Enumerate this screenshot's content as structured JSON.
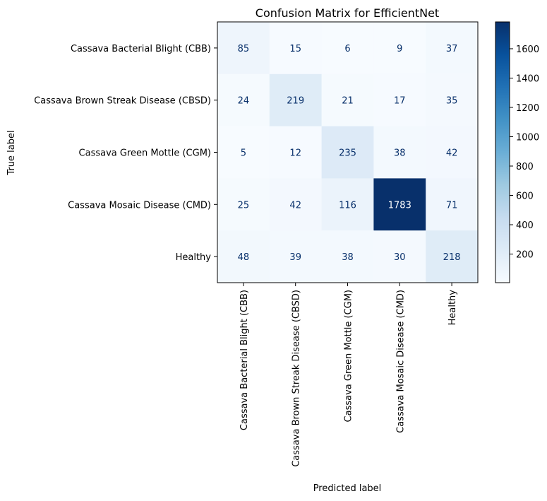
{
  "chart_data": {
    "type": "heatmap",
    "title": "Confusion Matrix for EfficientNet",
    "xlabel": "Predicted label",
    "ylabel": "True label",
    "row_labels": [
      "Cassava Bacterial Blight (CBB)",
      "Cassava Brown Streak Disease (CBSD)",
      "Cassava Green Mottle (CGM)",
      "Cassava Mosaic Disease (CMD)",
      "Healthy"
    ],
    "col_labels": [
      "Cassava Bacterial Blight (CBB)",
      "Cassava Brown Streak Disease (CBSD)",
      "Cassava Green Mottle (CGM)",
      "Cassava Mosaic Disease (CMD)",
      "Healthy"
    ],
    "values": [
      [
        85,
        15,
        6,
        9,
        37
      ],
      [
        24,
        219,
        21,
        17,
        35
      ],
      [
        5,
        12,
        235,
        38,
        42
      ],
      [
        25,
        42,
        116,
        1783,
        71
      ],
      [
        48,
        39,
        38,
        30,
        218
      ]
    ],
    "colormap": "Blues",
    "colorbar": {
      "min": 5,
      "max": 1783,
      "ticks": [
        200,
        400,
        600,
        800,
        1000,
        1200,
        1400,
        1600
      ]
    }
  }
}
